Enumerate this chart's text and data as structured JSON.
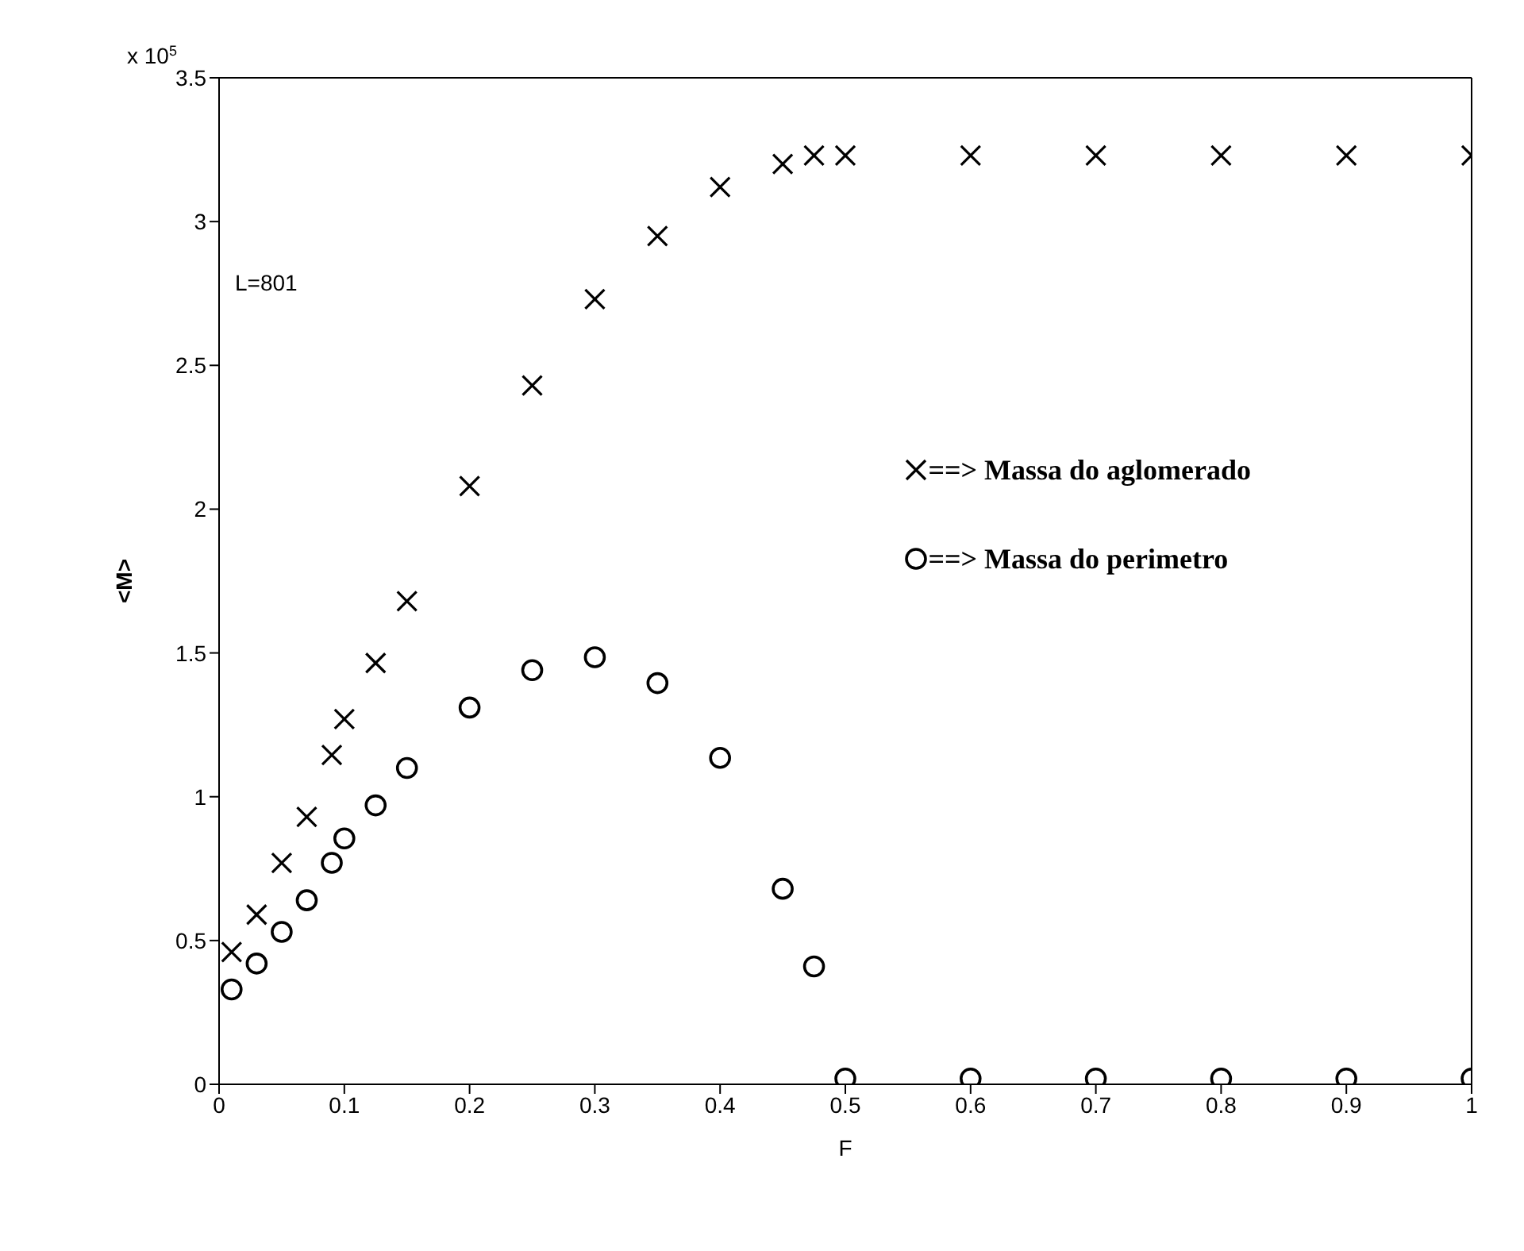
{
  "chart_data": {
    "type": "scatter",
    "xlabel": "F",
    "ylabel": "<M>",
    "annotations": [
      "L=801",
      "x 10$^{5}$"
    ],
    "xlim": [
      0,
      1
    ],
    "xticks": [
      0,
      0.1,
      0.2,
      0.3,
      0.4,
      0.5,
      0.6,
      0.7,
      0.8,
      0.9,
      1
    ],
    "ylim": [
      0,
      3.5
    ],
    "yticks": [
      0,
      0.5,
      1,
      1.5,
      2,
      2.5,
      3,
      3.5
    ],
    "legend": "right",
    "x": [
      0.01,
      0.03,
      0.05,
      0.07,
      0.09,
      0.1,
      0.125,
      0.15,
      0.2,
      0.25,
      0.3,
      0.35,
      0.4,
      0.45,
      0.475,
      0.5,
      0.6,
      0.7,
      0.8,
      0.9,
      1
    ],
    "series": [
      {
        "name": "==> Massa do aglomerado",
        "color": "#000000",
        "marker": "cross",
        "values": [
          0.46,
          0.59,
          0.77,
          0.93,
          1.145,
          1.27,
          1.465,
          1.68,
          2.08,
          2.43,
          2.73,
          2.95,
          3.12,
          3.2,
          3.23,
          3.23,
          3.23,
          3.23,
          3.23,
          3.23,
          3.23
        ]
      },
      {
        "name": "==> Massa do perimetro",
        "color": "#000000",
        "marker": "circle",
        "values": [
          0.33,
          0.42,
          0.53,
          0.64,
          0.77,
          0.855,
          0.97,
          1.1,
          1.31,
          1.44,
          1.485,
          1.395,
          1.135,
          0.68,
          0.41,
          0.02,
          0.02,
          0.02,
          0.02,
          0.02,
          0.02
        ]
      }
    ]
  }
}
